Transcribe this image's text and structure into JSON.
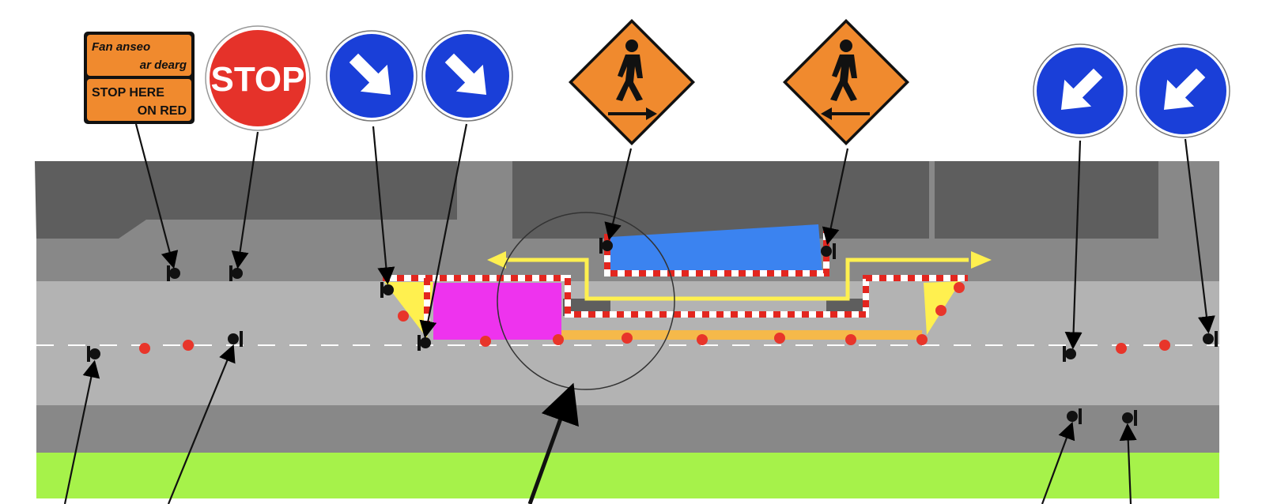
{
  "signs": {
    "stop_here_on_red": {
      "irish_line1": "Fan anseo",
      "irish_line2": "ar dearg",
      "english_line1": "STOP HERE",
      "english_line2": "ON RED",
      "icon": "stop-here-on-red-sign"
    },
    "stop": {
      "label": "STOP",
      "icon": "stop-sign"
    },
    "keep_right_1": {
      "icon": "keep-right-arrow-sign"
    },
    "keep_right_2": {
      "icon": "keep-right-arrow-sign"
    },
    "pedestrian_crossing_right": {
      "icon": "pedestrian-crossing-arrow-right-sign"
    },
    "pedestrian_crossing_left": {
      "icon": "pedestrian-crossing-arrow-left-sign"
    },
    "keep_left_1": {
      "icon": "keep-left-arrow-sign"
    },
    "keep_left_2": {
      "icon": "keep-left-arrow-sign"
    }
  },
  "colors": {
    "road": "#b3b3b3",
    "footpath": "#888888",
    "buildings": "#5e5e5e",
    "grass": "#a6f24a",
    "island_magenta": "#ee33ee",
    "island_blue": "#3b83f0",
    "route_yellow": "#fff04f",
    "kerb_red": "#e3261f",
    "stud_red": "#e8352a",
    "sign_orange": "#f08a2e",
    "sign_blue": "#1a3fd8",
    "stop_red": "#e5322a"
  }
}
